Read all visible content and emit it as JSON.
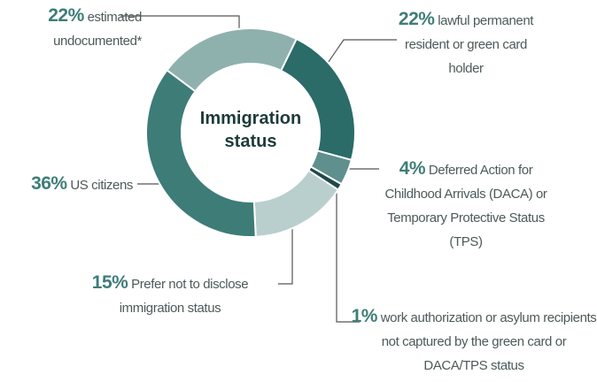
{
  "chart_data": {
    "type": "donut",
    "title": "Immigration status",
    "categories": [
      "lawful permanent resident or green card holder",
      "Deferred Action for Childhood Arrivals (DACA) or Temporary Protective Status (TPS)",
      "work authorization or asylum recipients not captured by the green card or DACA/TPS status",
      "Prefer not to disclose immigration status",
      "US citizens",
      "estimated undocumented*"
    ],
    "values": [
      22,
      4,
      1,
      15,
      36,
      22
    ],
    "value_labels": [
      "22%",
      "4%",
      "1%",
      "15%",
      "36%",
      "22%"
    ],
    "colors": [
      "#2b6b68",
      "#5f908d",
      "#1e4a48",
      "#b9cfcd",
      "#3e7c78",
      "#8fb1ae"
    ]
  }
}
